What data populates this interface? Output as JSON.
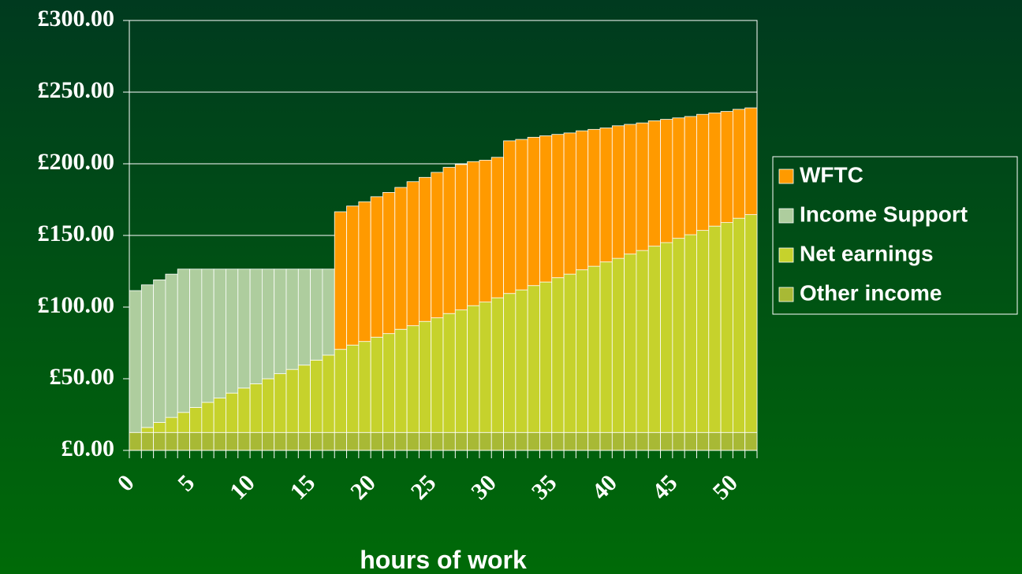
{
  "chart_data": {
    "type": "stacked-bar",
    "x_label": "hours of work",
    "categories": [
      "0",
      null,
      null,
      null,
      null,
      "5",
      null,
      null,
      null,
      null,
      "10",
      null,
      null,
      null,
      null,
      "15",
      null,
      null,
      null,
      null,
      "20",
      null,
      null,
      null,
      null,
      "25",
      null,
      null,
      null,
      null,
      "30",
      null,
      null,
      null,
      null,
      "35",
      null,
      null,
      null,
      null,
      "40",
      null,
      null,
      null,
      null,
      "45",
      null,
      null,
      null,
      null,
      "50",
      null
    ],
    "series": [
      {
        "name": "Other income",
        "color": "#a8b935",
        "values": [
          12.5,
          12.5,
          12.5,
          12.5,
          12.5,
          12.5,
          12.5,
          12.5,
          12.5,
          12.5,
          12.5,
          12.5,
          12.5,
          12.5,
          12.5,
          12.5,
          12.5,
          12.5,
          12.5,
          12.5,
          12.5,
          12.5,
          12.5,
          12.5,
          12.5,
          12.5,
          12.5,
          12.5,
          12.5,
          12.5,
          12.5,
          12.5,
          12.5,
          12.5,
          12.5,
          12.5,
          12.5,
          12.5,
          12.5,
          12.5,
          12.5,
          12.5,
          12.5,
          12.5,
          12.5,
          12.5,
          12.5,
          12.5,
          12.5,
          12.5,
          12.5,
          12.5
        ]
      },
      {
        "name": "Net earnings",
        "color": "#c6d22c",
        "values": [
          0,
          3.5,
          7,
          10.5,
          14,
          17.5,
          21,
          24,
          27.5,
          31,
          34,
          37.5,
          41,
          44,
          47,
          50.5,
          54,
          58,
          61,
          63.5,
          66.5,
          69,
          72,
          74.5,
          77.5,
          80,
          83,
          85.5,
          88.5,
          91,
          94,
          97,
          99.5,
          102.5,
          105,
          108,
          110.5,
          113.5,
          116,
          119,
          121.5,
          124.5,
          127,
          130,
          132.5,
          135.5,
          138,
          141,
          144,
          146.5,
          149.5,
          152
        ]
      },
      {
        "name": "Income Support",
        "color": "#aecd9e",
        "values": [
          99,
          99.5,
          99.5,
          100,
          100,
          96.5,
          93,
          90,
          86.5,
          83,
          80,
          76.5,
          73,
          70,
          67,
          63.5,
          60,
          null,
          null,
          null,
          null,
          null,
          null,
          null,
          null,
          null,
          null,
          null,
          null,
          null,
          null,
          null,
          null,
          null,
          null,
          null,
          null,
          null,
          null,
          null,
          null,
          null,
          null,
          null,
          null,
          null,
          null,
          null,
          null,
          null,
          null,
          null
        ]
      },
      {
        "name": "WFTC",
        "color": "#ff9a00",
        "values": [
          null,
          null,
          null,
          null,
          null,
          null,
          null,
          null,
          null,
          null,
          null,
          null,
          null,
          null,
          null,
          null,
          null,
          96,
          97,
          97.5,
          98,
          98.5,
          99,
          100.5,
          100.5,
          101.5,
          102,
          101.5,
          100.5,
          99,
          98,
          106.5,
          105,
          103.5,
          102,
          100,
          98.5,
          97,
          95.5,
          93.5,
          92.5,
          90.5,
          89,
          87.5,
          86,
          84,
          82.5,
          81,
          79,
          77.5,
          76,
          74.5
        ]
      }
    ],
    "ylim": [
      0,
      300
    ],
    "yticks": [
      {
        "value": 0,
        "label": "£0.00"
      },
      {
        "value": 50,
        "label": "£50.00"
      },
      {
        "value": 100,
        "label": "£100.00"
      },
      {
        "value": 150,
        "label": "£150.00"
      },
      {
        "value": 200,
        "label": "£200.00"
      },
      {
        "value": 250,
        "label": "£250.00"
      },
      {
        "value": 300,
        "label": "£300.00"
      }
    ],
    "grid": true,
    "legend": "right"
  }
}
